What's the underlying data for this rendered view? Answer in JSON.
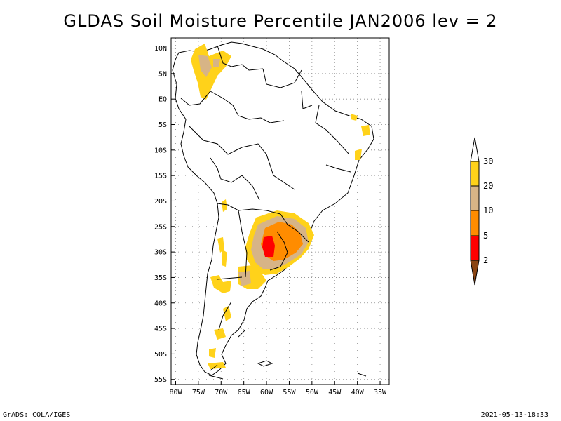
{
  "title": "GLDAS Soil Moisture Percentile JAN2006 lev = 2",
  "footer": {
    "left": "GrADS: COLA/IGES",
    "right": "2021-05-13-18:33"
  },
  "map": {
    "lat_labels": [
      "10N",
      "5N",
      "EQ",
      "5S",
      "10S",
      "15S",
      "20S",
      "25S",
      "30S",
      "35S",
      "40S",
      "45S",
      "50S",
      "55S"
    ],
    "lon_labels": [
      "80W",
      "75W",
      "70W",
      "65W",
      "60W",
      "55W",
      "50W",
      "45W",
      "40W",
      "35W"
    ],
    "lat_range": [
      -56,
      12
    ],
    "lon_range": [
      -81,
      -33
    ],
    "grid": "dotted"
  },
  "colorbar": {
    "labels": [
      "30",
      "20",
      "10",
      "5",
      "2"
    ],
    "colors": {
      "above": "#ffffff",
      "band_20_30": "#ffd21a",
      "band_10_20": "#d7b486",
      "band_5_10": "#ff8c00",
      "band_2_5": "#ff0000",
      "below": "#8b4513"
    }
  }
}
